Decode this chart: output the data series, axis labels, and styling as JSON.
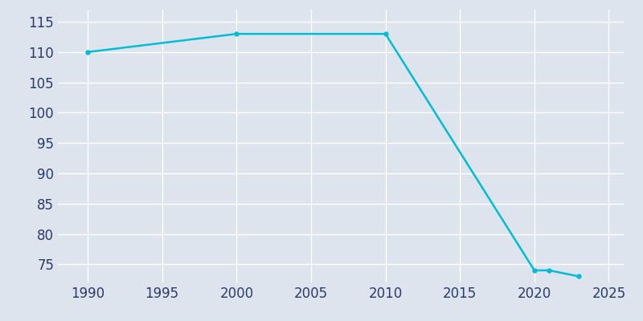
{
  "x": [
    1990,
    2000,
    2010,
    2020,
    2021,
    2023
  ],
  "y": [
    110,
    113,
    113,
    74,
    74,
    73
  ],
  "line_color": "#00bcd4",
  "marker": "o",
  "marker_size": 3.5,
  "line_width": 1.8,
  "background_color": "#dde4ee",
  "plot_background_color": "#dde4ee",
  "grid_color": "#ffffff",
  "tick_label_color": "#2b3a6b",
  "xlim": [
    1988,
    2026
  ],
  "ylim": [
    72,
    117
  ],
  "yticks": [
    75,
    80,
    85,
    90,
    95,
    100,
    105,
    110,
    115
  ],
  "xticks": [
    1990,
    1995,
    2000,
    2005,
    2010,
    2015,
    2020,
    2025
  ],
  "tick_fontsize": 12
}
